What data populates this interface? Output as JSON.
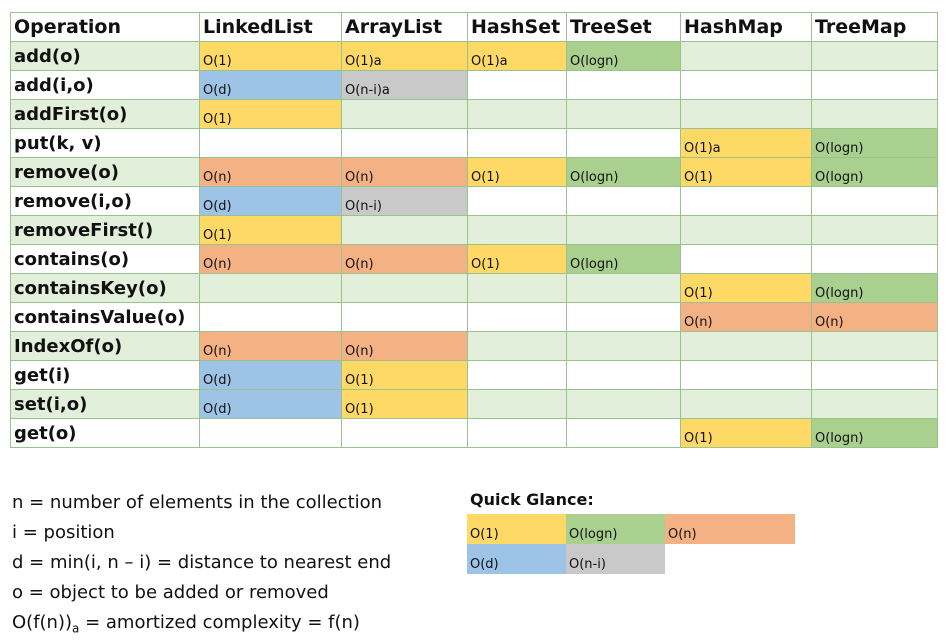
{
  "table": {
    "headers": [
      "Operation",
      "LinkedList",
      "ArrayList",
      "HashSet",
      "TreeSet",
      "HashMap",
      "TreeMap"
    ],
    "rows": [
      {
        "op": "add(o)",
        "cells": [
          "O(1)",
          "O(1)a",
          "O(1)a",
          "O(logn)",
          "",
          ""
        ]
      },
      {
        "op": "add(i,o)",
        "cells": [
          "O(d)",
          "O(n-i)a",
          "",
          "",
          "",
          ""
        ]
      },
      {
        "op": "addFirst(o)",
        "cells": [
          "O(1)",
          "",
          "",
          "",
          "",
          ""
        ]
      },
      {
        "op": "put(k, v)",
        "cells": [
          "",
          "",
          "",
          "",
          "O(1)a",
          "O(logn)"
        ]
      },
      {
        "op": "remove(o)",
        "cells": [
          "O(n)",
          "O(n)",
          "O(1)",
          "O(logn)",
          "O(1)",
          "O(logn)"
        ]
      },
      {
        "op": "remove(i,o)",
        "cells": [
          "O(d)",
          "O(n-i)",
          "",
          "",
          "",
          ""
        ]
      },
      {
        "op": "removeFirst()",
        "cells": [
          "O(1)",
          "",
          "",
          "",
          "",
          ""
        ]
      },
      {
        "op": "contains(o)",
        "cells": [
          "O(n)",
          "O(n)",
          "O(1)",
          "O(logn)",
          "",
          ""
        ]
      },
      {
        "op": "containsKey(o)",
        "cells": [
          "",
          "",
          "",
          "",
          "O(1)",
          "O(logn)"
        ]
      },
      {
        "op": "containsValue(o)",
        "cells": [
          "",
          "",
          "",
          "",
          "O(n)",
          "O(n)"
        ]
      },
      {
        "op": "IndexOf(o)",
        "cells": [
          "O(n)",
          "O(n)",
          "",
          "",
          "",
          ""
        ]
      },
      {
        "op": "get(i)",
        "cells": [
          "O(d)",
          "O(1)",
          "",
          "",
          "",
          ""
        ]
      },
      {
        "op": "set(i,o)",
        "cells": [
          "O(d)",
          "O(1)",
          "",
          "",
          "",
          ""
        ]
      },
      {
        "op": "get(o)",
        "cells": [
          "",
          "",
          "",
          "",
          "O(1)",
          "O(logn)"
        ]
      }
    ]
  },
  "legend": {
    "n_line": "n = number of elements in the collection",
    "i_line": "i = position",
    "d_line": "d = min(i, n – i) = distance to nearest end",
    "o_line": "o = object to be added or removed",
    "amort_prefix": "O(f(n))",
    "amort_sub": "a",
    "amort_suffix": " = amortized complexity = f(n)"
  },
  "quick_glance": {
    "title": "Quick Glance:",
    "row1": [
      "O(1)",
      "O(logn)",
      "O(n)"
    ],
    "row2": [
      "O(d)",
      "O(n-i)"
    ]
  },
  "colors": {
    "O(1)": "#ffd966",
    "O(logn)": "#a9d08e",
    "O(n)": "#f4b183",
    "O(d)": "#9dc3e6",
    "O(n-i)": "#c9c9c9",
    "row_alt": "#e2efda",
    "border": "#9bc28c"
  }
}
